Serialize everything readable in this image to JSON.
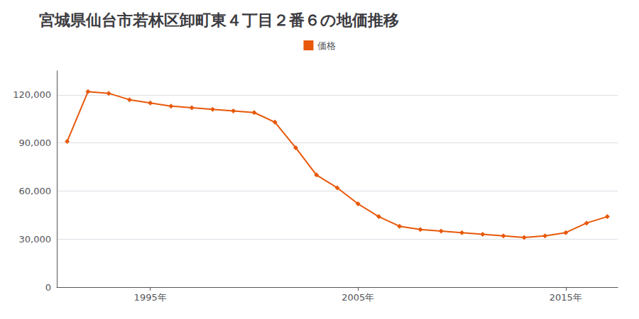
{
  "chart_data": {
    "type": "line",
    "title": "宮城県仙台市若林区卸町東４丁目２番６の地価推移",
    "x": [
      1991,
      1992,
      1993,
      1994,
      1995,
      1996,
      1997,
      1998,
      1999,
      2000,
      2001,
      2002,
      2003,
      2004,
      2005,
      2006,
      2007,
      2008,
      2009,
      2010,
      2011,
      2012,
      2013,
      2014,
      2015,
      2016,
      2017
    ],
    "series": [
      {
        "name": "価格",
        "color": "#E8580A",
        "values": [
          91000,
          122000,
          121000,
          117000,
          115000,
          113000,
          112000,
          111000,
          110000,
          109000,
          103000,
          87000,
          70000,
          62000,
          52000,
          44000,
          38000,
          36000,
          35000,
          34000,
          33000,
          32000,
          31000,
          32000,
          34000,
          40000,
          44000
        ]
      }
    ],
    "xlim": [
      1990.5,
      2017.5
    ],
    "xticks": [
      {
        "value": 1995,
        "label": "1995年"
      },
      {
        "value": 2005,
        "label": "2005年"
      },
      {
        "value": 2015,
        "label": "2015年"
      }
    ],
    "ylim": [
      0,
      135000
    ],
    "yticks": [
      0,
      {
        "value": 30000,
        "label": "30,000"
      },
      {
        "value": 60000,
        "label": "60,000"
      },
      {
        "value": 90000,
        "label": "90,000"
      },
      {
        "value": 120000,
        "label": "120,000"
      }
    ],
    "grid": true,
    "legend": "top",
    "marker": "diamond"
  }
}
